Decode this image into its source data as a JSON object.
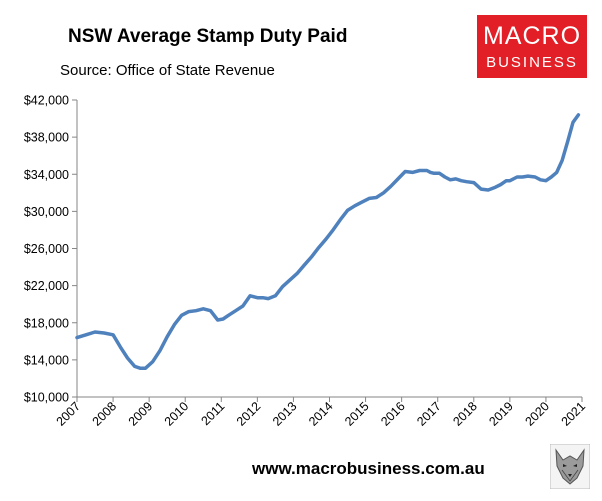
{
  "header": {
    "title": "NSW Average Stamp Duty Paid",
    "subtitle": "Source: Office of State Revenue"
  },
  "logo": {
    "line1": "MACRO",
    "line2": "BUSINESS",
    "color": "#e21f26"
  },
  "footer": {
    "url": "www.macrobusiness.com.au",
    "mascot_icon": "wolf-icon"
  },
  "chart_data": {
    "type": "line",
    "title": "NSW Average Stamp Duty Paid",
    "xlabel": "",
    "ylabel": "",
    "xlim": [
      2007,
      2021
    ],
    "ylim": [
      10000,
      42000
    ],
    "x_ticks": [
      2007,
      2008,
      2009,
      2010,
      2011,
      2012,
      2013,
      2014,
      2015,
      2016,
      2017,
      2018,
      2019,
      2020,
      2021
    ],
    "y_ticks": [
      10000,
      14000,
      18000,
      22000,
      26000,
      30000,
      34000,
      38000,
      42000
    ],
    "y_tick_labels": [
      "$10,000",
      "$14,000",
      "$18,000",
      "$22,000",
      "$26,000",
      "$30,000",
      "$34,000",
      "$38,000",
      "$42,000"
    ],
    "grid": false,
    "line_color": "#4f81bd",
    "series": [
      {
        "x": [
          2007.0,
          2007.25,
          2007.5,
          2007.75,
          2008.0,
          2008.2,
          2008.4,
          2008.6,
          2008.75,
          2008.9,
          2009.1,
          2009.3,
          2009.5,
          2009.7,
          2009.9,
          2010.1,
          2010.3,
          2010.5,
          2010.7,
          2010.9,
          2011.05,
          2011.2,
          2011.4,
          2011.6,
          2011.8,
          2012.0,
          2012.15,
          2012.3,
          2012.5,
          2012.7,
          2012.9,
          2013.1,
          2013.3,
          2013.5,
          2013.7,
          2013.9,
          2014.1,
          2014.3,
          2014.5,
          2014.7,
          2014.9,
          2015.1,
          2015.3,
          2015.5,
          2015.7,
          2015.9,
          2016.1,
          2016.3,
          2016.5,
          2016.7,
          2016.8,
          2016.9,
          2017.05,
          2017.2,
          2017.35,
          2017.5,
          2017.65,
          2017.8,
          2018.0,
          2018.2,
          2018.4,
          2018.6,
          2018.75,
          2018.9,
          2019.0,
          2019.2,
          2019.35,
          2019.5,
          2019.7,
          2019.85,
          2020.0,
          2020.15,
          2020.3,
          2020.45,
          2020.6,
          2020.75,
          2020.9
        ],
        "values": [
          16400,
          16700,
          17000,
          16900,
          16700,
          15400,
          14200,
          13300,
          13100,
          13100,
          13800,
          15000,
          16500,
          17800,
          18800,
          19200,
          19300,
          19500,
          19300,
          18300,
          18400,
          18800,
          19300,
          19800,
          20900,
          20700,
          20700,
          20600,
          20900,
          21900,
          22600,
          23300,
          24200,
          25100,
          26100,
          27000,
          28000,
          29100,
          30100,
          30600,
          31000,
          31400,
          31500,
          32000,
          32700,
          33500,
          34300,
          34200,
          34400,
          34400,
          34200,
          34100,
          34100,
          33700,
          33400,
          33500,
          33300,
          33200,
          33100,
          32400,
          32300,
          32600,
          32900,
          33300,
          33300,
          33700,
          33700,
          33800,
          33700,
          33400,
          33300,
          33700,
          34200,
          35500,
          37500,
          39600,
          40400
        ]
      }
    ]
  }
}
